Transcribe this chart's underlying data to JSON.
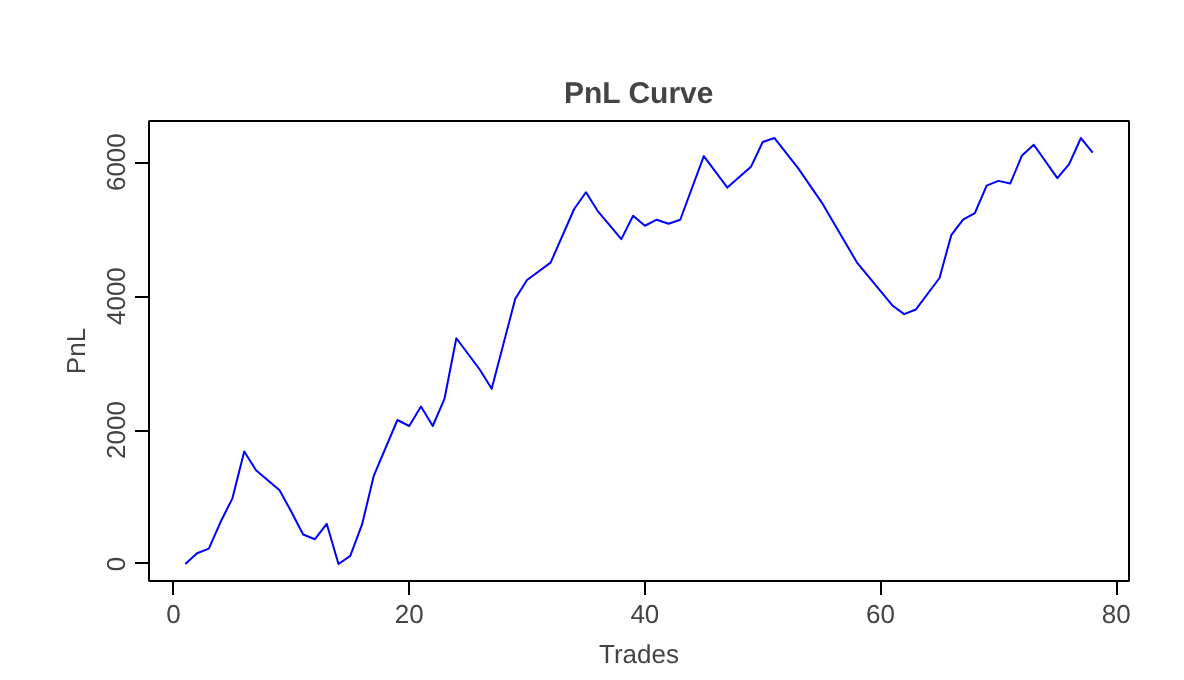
{
  "chart_data": {
    "type": "line",
    "title": "PnL Curve",
    "xlabel": "Trades",
    "ylabel": "PnL",
    "x": [
      1,
      2,
      3,
      4,
      5,
      6,
      7,
      9,
      10,
      11,
      12,
      13,
      14,
      15,
      16,
      17,
      19,
      20,
      21,
      22,
      23,
      24,
      26,
      27,
      29,
      30,
      32,
      34,
      35,
      36,
      38,
      39,
      40,
      41,
      42,
      43,
      45,
      47,
      49,
      50,
      51,
      53,
      55,
      58,
      61,
      62,
      63,
      65,
      66,
      67,
      68,
      69,
      70,
      71,
      72,
      73,
      75,
      76,
      77,
      78
    ],
    "series": [
      {
        "color": "#0000ff",
        "values": [
          0,
          160,
          230,
          630,
          980,
          1680,
          1400,
          1100,
          780,
          440,
          370,
          600,
          0,
          120,
          590,
          1320,
          2150,
          2060,
          2350,
          2060,
          2470,
          3370,
          2900,
          2615,
          3960,
          4240,
          4500,
          5300,
          5550,
          5270,
          4850,
          5200,
          5050,
          5140,
          5080,
          5140,
          6090,
          5620,
          5930,
          6300,
          6360,
          5910,
          5400,
          4500,
          3860,
          3730,
          3800,
          4270,
          4910,
          5140,
          5240,
          5650,
          5720,
          5680,
          6100,
          6260,
          5760,
          5970,
          6360,
          6140
        ]
      }
    ],
    "xlim": [
      -2.08,
      81.08
    ],
    "ylim": [
      -254,
      6614
    ],
    "xticks": [
      0,
      20,
      40,
      60,
      80
    ],
    "yticks": [
      0,
      2000,
      4000,
      6000
    ],
    "grid": false
  }
}
